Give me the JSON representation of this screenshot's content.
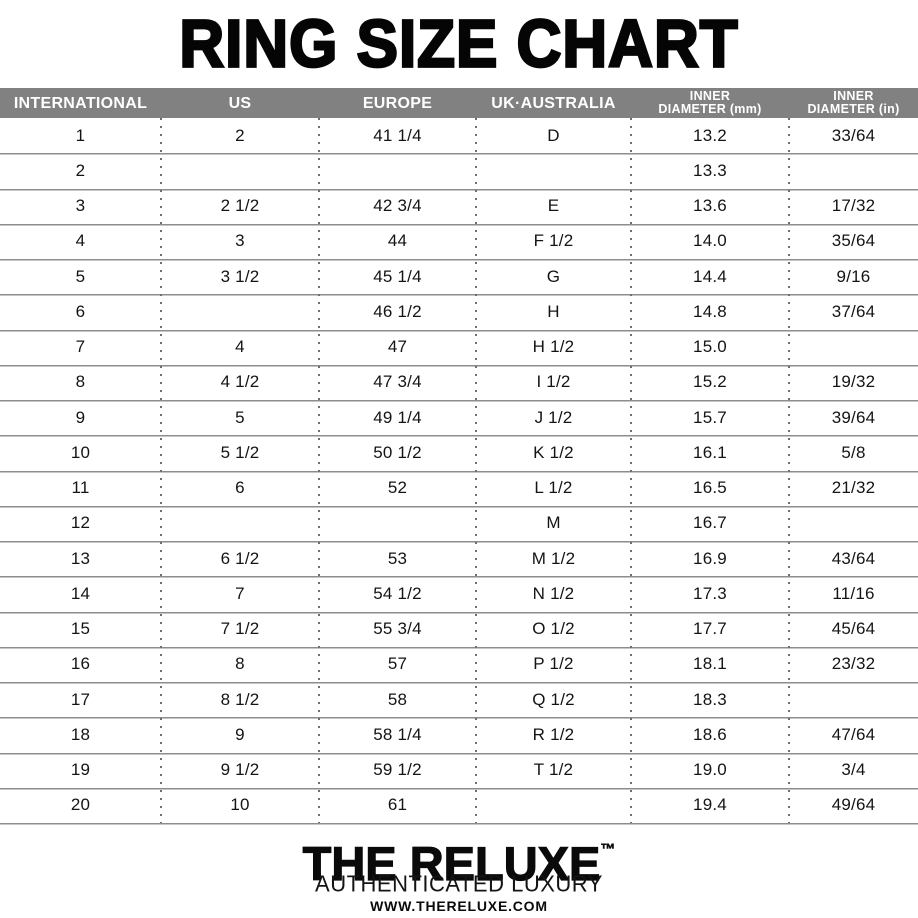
{
  "title": "RING SIZE CHART",
  "table": {
    "columns": [
      {
        "line1": "INTERNATIONAL",
        "line2": ""
      },
      {
        "line1": "US",
        "line2": ""
      },
      {
        "line1": "EUROPE",
        "line2": ""
      },
      {
        "line1": "UK·AUSTRALIA",
        "line2": ""
      },
      {
        "line1": "INNER",
        "line2": "DIAMETER (mm)"
      },
      {
        "line1": "INNER",
        "line2": "DIAMETER (in)"
      }
    ],
    "rows": [
      {
        "international": "1",
        "us": "2",
        "europe": "41 1/4",
        "uk": "D",
        "mm": "13.2",
        "in": "33/64"
      },
      {
        "international": "2",
        "us": "",
        "europe": "",
        "uk": "",
        "mm": "13.3",
        "in": ""
      },
      {
        "international": "3",
        "us": "2 1/2",
        "europe": "42 3/4",
        "uk": "E",
        "mm": "13.6",
        "in": "17/32"
      },
      {
        "international": "4",
        "us": "3",
        "europe": "44",
        "uk": "F 1/2",
        "mm": "14.0",
        "in": "35/64"
      },
      {
        "international": "5",
        "us": "3 1/2",
        "europe": "45 1/4",
        "uk": "G",
        "mm": "14.4",
        "in": "9/16"
      },
      {
        "international": "6",
        "us": "",
        "europe": "46 1/2",
        "uk": "H",
        "mm": "14.8",
        "in": "37/64"
      },
      {
        "international": "7",
        "us": "4",
        "europe": "47",
        "uk": "H 1/2",
        "mm": "15.0",
        "in": ""
      },
      {
        "international": "8",
        "us": "4 1/2",
        "europe": "47 3/4",
        "uk": "I 1/2",
        "mm": "15.2",
        "in": "19/32"
      },
      {
        "international": "9",
        "us": "5",
        "europe": "49 1/4",
        "uk": "J 1/2",
        "mm": "15.7",
        "in": "39/64"
      },
      {
        "international": "10",
        "us": "5 1/2",
        "europe": "50 1/2",
        "uk": "K 1/2",
        "mm": "16.1",
        "in": "5/8"
      },
      {
        "international": "11",
        "us": "6",
        "europe": "52",
        "uk": "L 1/2",
        "mm": "16.5",
        "in": "21/32"
      },
      {
        "international": "12",
        "us": "",
        "europe": "",
        "uk": "M",
        "mm": "16.7",
        "in": ""
      },
      {
        "international": "13",
        "us": "6 1/2",
        "europe": "53",
        "uk": "M 1/2",
        "mm": "16.9",
        "in": "43/64"
      },
      {
        "international": "14",
        "us": "7",
        "europe": "54 1/2",
        "uk": "N 1/2",
        "mm": "17.3",
        "in": "11/16"
      },
      {
        "international": "15",
        "us": "7 1/2",
        "europe": "55 3/4",
        "uk": "O 1/2",
        "mm": "17.7",
        "in": "45/64"
      },
      {
        "international": "16",
        "us": "8",
        "europe": "57",
        "uk": "P 1/2",
        "mm": "18.1",
        "in": "23/32"
      },
      {
        "international": "17",
        "us": "8 1/2",
        "europe": "58",
        "uk": "Q 1/2",
        "mm": "18.3",
        "in": ""
      },
      {
        "international": "18",
        "us": "9",
        "europe": "58 1/4",
        "uk": "R 1/2",
        "mm": "18.6",
        "in": "47/64"
      },
      {
        "international": "19",
        "us": "9 1/2",
        "europe": "59 1/2",
        "uk": "T 1/2",
        "mm": "19.0",
        "in": "3/4"
      },
      {
        "international": "20",
        "us": "10",
        "europe": "61",
        "uk": "",
        "mm": "19.4",
        "in": "49/64"
      }
    ]
  },
  "footer": {
    "brand": "THE RELUXE",
    "trademark": "™",
    "tagline": "AUTHENTICATED LUXURY",
    "website": "WWW.THERELUXE.COM"
  },
  "colors": {
    "header_bg": "#818181",
    "header_text": "#ffffff",
    "title_text": "#050505",
    "row_text": "#141414",
    "separator_dark": "#8d8d8d",
    "separator_light": "#c6c6c6",
    "dots": "#6f6f6f"
  }
}
